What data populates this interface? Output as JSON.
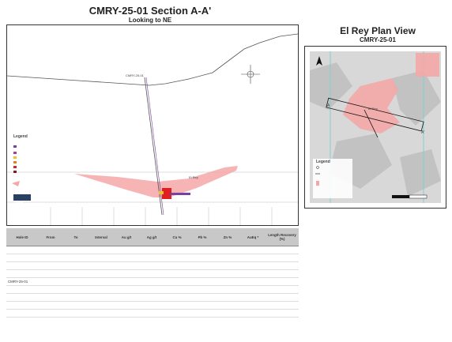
{
  "section": {
    "title": "CMRY-25-01 Section A-A'",
    "subtitle": "Looking to NE",
    "hole_label": "CMRY-25-01",
    "vein_label": "El Rey",
    "legend_title": "Legend",
    "logo": "LMRA"
  },
  "plan": {
    "title": "El Rey Plan View",
    "subtitle": "CMRY-25-01",
    "legend_title": "Legend",
    "vein_label": "El Rey",
    "section_start": "A",
    "section_end": "A'"
  },
  "table": {
    "headers": [
      "Hole ID",
      "From",
      "To",
      "Interval",
      "Au g/t",
      "Ag g/t",
      "Cu %",
      "Pb %",
      "Zn %",
      "AuEq *",
      "Length Recovery (%)"
    ],
    "hole_id": "CMRY-25-01",
    "rows": [
      [
        "",
        "",
        "",
        "",
        "",
        "",
        "",
        "",
        "",
        "",
        ""
      ],
      [
        "",
        "",
        "",
        "",
        "",
        "",
        "",
        "",
        "",
        "",
        ""
      ],
      [
        "",
        "",
        "",
        "",
        "",
        "",
        "",
        "",
        "",
        "",
        ""
      ],
      [
        "",
        "",
        "",
        "",
        "",
        "",
        "",
        "",
        "",
        "",
        ""
      ],
      [
        "",
        "",
        "",
        "",
        "",
        "",
        "",
        "",
        "",
        "",
        ""
      ],
      [
        "",
        "",
        "",
        "",
        "",
        "",
        "",
        "",
        "",
        "",
        ""
      ],
      [
        "",
        "",
        "",
        "",
        "",
        "",
        "",
        "",
        "",
        "",
        ""
      ],
      [
        "",
        "",
        "",
        "",
        "",
        "",
        "",
        "",
        "",
        "",
        ""
      ],
      [
        "",
        "",
        "",
        "",
        "",
        "",
        "",
        "",
        "",
        "",
        ""
      ]
    ]
  },
  "colors": {
    "vein_fill": "#f4a7a7",
    "vein_dark": "#e06060",
    "intercept": "#e02020",
    "trace": "#7a3fa0",
    "guide": "#7fd0d0",
    "header_bg": "#c8c8c8"
  }
}
